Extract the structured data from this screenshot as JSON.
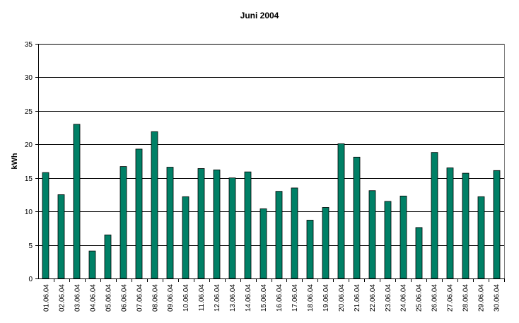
{
  "chart_data": {
    "type": "bar",
    "title": "Juni 2004",
    "xlabel": "",
    "ylabel": "kWh",
    "ylim": [
      0,
      35
    ],
    "yticks": [
      0,
      5,
      10,
      15,
      20,
      25,
      30,
      35
    ],
    "grid": true,
    "legend": "none",
    "bar_color": "#008066",
    "categories": [
      "01.06.04",
      "02.06.04",
      "03.06.04",
      "04.06.04",
      "05.06.04",
      "06.06.04",
      "07.06.04",
      "08.06.04",
      "09.06.04",
      "10.06.04",
      "11.06.04",
      "12.06.04",
      "13.06.04",
      "14.06.04",
      "15.06.04",
      "16.06.04",
      "17.06.04",
      "18.06.04",
      "19.06.04",
      "20.06.04",
      "21.06.04",
      "22.06.04",
      "23.06.04",
      "24.06.04",
      "25.06.04",
      "26.06.04",
      "27.06.04",
      "28.06.04",
      "29.06.04",
      "30.06.04"
    ],
    "values": [
      15.8,
      12.5,
      23.0,
      4.1,
      6.5,
      16.7,
      19.3,
      21.9,
      16.6,
      12.2,
      16.4,
      16.2,
      15.0,
      15.9,
      10.4,
      13.0,
      13.5,
      8.7,
      10.6,
      20.1,
      18.1,
      13.1,
      11.5,
      12.3,
      7.6,
      18.8,
      16.5,
      15.7,
      12.2,
      16.1
    ]
  }
}
